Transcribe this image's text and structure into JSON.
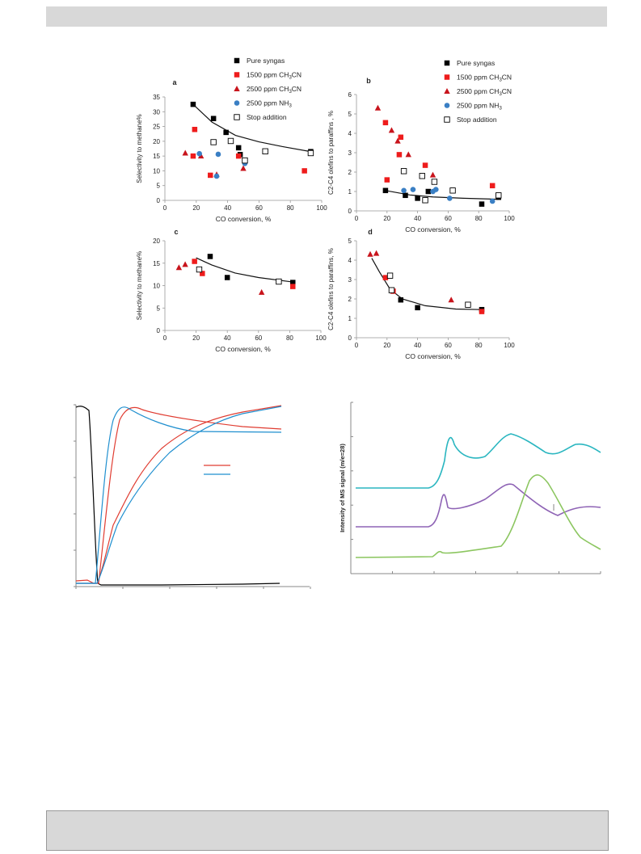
{
  "header_bar": "",
  "footer_box": "",
  "figure_top": {
    "legend": [
      {
        "label": "Pure syngas",
        "marker": "square",
        "color": "#000000"
      },
      {
        "label": "1500 ppm CH3CN",
        "marker": "square",
        "color": "#ee1c1c"
      },
      {
        "label": "2500 ppm CH3CN",
        "marker": "triangle",
        "color": "#c8141c"
      },
      {
        "label": "2500 ppm NH3",
        "marker": "circle",
        "color": "#3a7fc4"
      },
      {
        "label": "Stop addition",
        "marker": "open-square",
        "color": "#000000"
      }
    ]
  },
  "chart_data": [
    {
      "panel": "a",
      "type": "scatter",
      "xlabel": "CO conversion, %",
      "ylabel": "Selectivity  to  methane%",
      "xlim": [
        0,
        100
      ],
      "ylim": [
        0,
        35
      ],
      "xticks": [
        "0",
        "20",
        "40",
        "60",
        "80",
        "100"
      ],
      "yticks": [
        "0",
        "5",
        "10",
        "15",
        "20",
        "25",
        "30",
        "35"
      ],
      "series": [
        {
          "name": "Pure syngas",
          "points": [
            [
              18,
              32.5
            ],
            [
              31,
              27.7
            ],
            [
              39,
              23
            ],
            [
              47,
              17.8
            ],
            [
              48,
              15.5
            ],
            [
              93,
              16.5
            ]
          ]
        },
        {
          "name": "1500 ppm CH3CN",
          "points": [
            [
              18,
              15
            ],
            [
              19,
              24
            ],
            [
              29,
              8.5
            ],
            [
              47,
              15
            ],
            [
              89,
              10
            ]
          ]
        },
        {
          "name": "2500 ppm CH3CN",
          "points": [
            [
              13,
              16
            ],
            [
              23,
              15
            ],
            [
              33,
              8.7
            ],
            [
              50,
              10.8
            ]
          ]
        },
        {
          "name": "2500 ppm NH3",
          "points": [
            [
              22,
              15.8
            ],
            [
              33,
              8.2
            ],
            [
              34,
              15.6
            ],
            [
              51,
              12.5
            ]
          ]
        },
        {
          "name": "Stop addition",
          "points": [
            [
              31,
              19.7
            ],
            [
              42,
              20.1
            ],
            [
              51,
              13.5
            ],
            [
              64,
              16.6
            ],
            [
              93,
              16
            ]
          ]
        }
      ],
      "fit": [
        [
          18,
          32.5
        ],
        [
          30,
          26.5
        ],
        [
          45,
          22
        ],
        [
          60,
          19.8
        ],
        [
          75,
          18.2
        ],
        [
          93,
          16.5
        ]
      ]
    },
    {
      "panel": "b",
      "type": "scatter",
      "xlabel": "CO conversion, %",
      "ylabel": "C2-C4 olefins to paraffins  , %",
      "xlim": [
        0,
        100
      ],
      "ylim": [
        0,
        6
      ],
      "xticks": [
        "0",
        "20",
        "40",
        "60",
        "80",
        "100"
      ],
      "yticks": [
        "0",
        "1",
        "2",
        "3",
        "4",
        "5",
        "6"
      ],
      "series": [
        {
          "name": "Pure syngas",
          "points": [
            [
              19,
              1.05
            ],
            [
              32,
              0.8
            ],
            [
              40,
              0.65
            ],
            [
              47,
              1.0
            ],
            [
              82,
              0.35
            ],
            [
              93,
              0.7
            ]
          ]
        },
        {
          "name": "1500 ppm CH3CN",
          "points": [
            [
              19,
              4.55
            ],
            [
              20,
              1.6
            ],
            [
              28,
              2.9
            ],
            [
              29,
              3.8
            ],
            [
              45,
              2.35
            ],
            [
              89,
              1.3
            ]
          ]
        },
        {
          "name": "2500 ppm CH3CN",
          "points": [
            [
              14,
              5.3
            ],
            [
              23,
              4.15
            ],
            [
              27,
              3.6
            ],
            [
              34,
              2.9
            ],
            [
              50,
              1.85
            ]
          ]
        },
        {
          "name": "2500 ppm NH3",
          "points": [
            [
              31,
              1.05
            ],
            [
              37,
              1.1
            ],
            [
              50,
              1.0
            ],
            [
              52,
              1.1
            ],
            [
              61,
              0.65
            ],
            [
              89,
              0.5
            ]
          ]
        },
        {
          "name": "Stop addition",
          "points": [
            [
              31,
              2.05
            ],
            [
              43,
              1.8
            ],
            [
              45,
              0.55
            ],
            [
              51,
              1.5
            ],
            [
              63,
              1.05
            ],
            [
              93,
              0.8
            ]
          ]
        }
      ],
      "fit": [
        [
          19,
          1.05
        ],
        [
          35,
          0.82
        ],
        [
          50,
          0.72
        ],
        [
          70,
          0.65
        ],
        [
          93,
          0.6
        ]
      ]
    },
    {
      "panel": "c",
      "type": "scatter",
      "xlabel": "CO conversion, %",
      "ylabel": "Selectivity  to  methane%",
      "xlim": [
        0,
        100
      ],
      "ylim": [
        0,
        20
      ],
      "xticks": [
        "0",
        "20",
        "40",
        "60",
        "80",
        "100"
      ],
      "yticks": [
        "0",
        "5",
        "10",
        "15",
        "20"
      ],
      "series": [
        {
          "name": "Pure syngas",
          "points": [
            [
              29,
              16.5
            ],
            [
              40,
              11.8
            ],
            [
              82,
              10.7
            ]
          ]
        },
        {
          "name": "1500 ppm CH3CN",
          "points": [
            [
              19,
              15.4
            ],
            [
              24,
              12.7
            ],
            [
              82,
              9.8
            ]
          ]
        },
        {
          "name": "2500 ppm CH3CN",
          "points": [
            [
              9,
              14
            ],
            [
              13,
              14.7
            ],
            [
              62,
              8.5
            ]
          ]
        },
        {
          "name": "Stop addition",
          "points": [
            [
              22,
              13.6
            ],
            [
              73,
              10.9
            ]
          ]
        }
      ],
      "fit": [
        [
          20,
          16.2
        ],
        [
          30,
          14.6
        ],
        [
          45,
          12.8
        ],
        [
          60,
          11.8
        ],
        [
          82,
          10.8
        ]
      ]
    },
    {
      "panel": "d",
      "type": "scatter",
      "xlabel": "CO conversion, %",
      "ylabel": "C2-C4 olefins to paraffins, %",
      "xlim": [
        0,
        100
      ],
      "ylim": [
        0,
        5
      ],
      "xticks": [
        "0",
        "20",
        "40",
        "60",
        "80",
        "100"
      ],
      "yticks": [
        "0",
        "1",
        "2",
        "3",
        "4",
        "5"
      ],
      "series": [
        {
          "name": "Pure syngas",
          "points": [
            [
              29,
              1.95
            ],
            [
              40,
              1.55
            ],
            [
              82,
              1.45
            ]
          ]
        },
        {
          "name": "1500 ppm CH3CN",
          "points": [
            [
              19,
              3.1
            ],
            [
              24,
              2.4
            ],
            [
              82,
              1.35
            ]
          ]
        },
        {
          "name": "2500 ppm CH3CN",
          "points": [
            [
              9,
              4.3
            ],
            [
              13,
              4.35
            ],
            [
              62,
              1.95
            ]
          ]
        },
        {
          "name": "Stop addition",
          "points": [
            [
              22,
              3.2
            ],
            [
              23,
              2.45
            ],
            [
              73,
              1.7
            ]
          ]
        }
      ],
      "fit": [
        [
          10,
          4.1
        ],
        [
          15,
          3.4
        ],
        [
          22,
          2.5
        ],
        [
          30,
          2.0
        ],
        [
          45,
          1.65
        ],
        [
          65,
          1.48
        ],
        [
          82,
          1.45
        ]
      ]
    },
    {
      "panel": "transient",
      "type": "line",
      "xlabel": "",
      "ylabel": "",
      "series_colors": [
        "#000000",
        "#e03c31",
        "#e03c31",
        "#1f8fcf",
        "#1f8fcf"
      ]
    },
    {
      "panel": "ms",
      "type": "line",
      "ylabel": "Intensity of MS signal (m/e=28)",
      "series_colors": [
        "#2ab6c0",
        "#8e63b5",
        "#8cc660"
      ]
    }
  ]
}
